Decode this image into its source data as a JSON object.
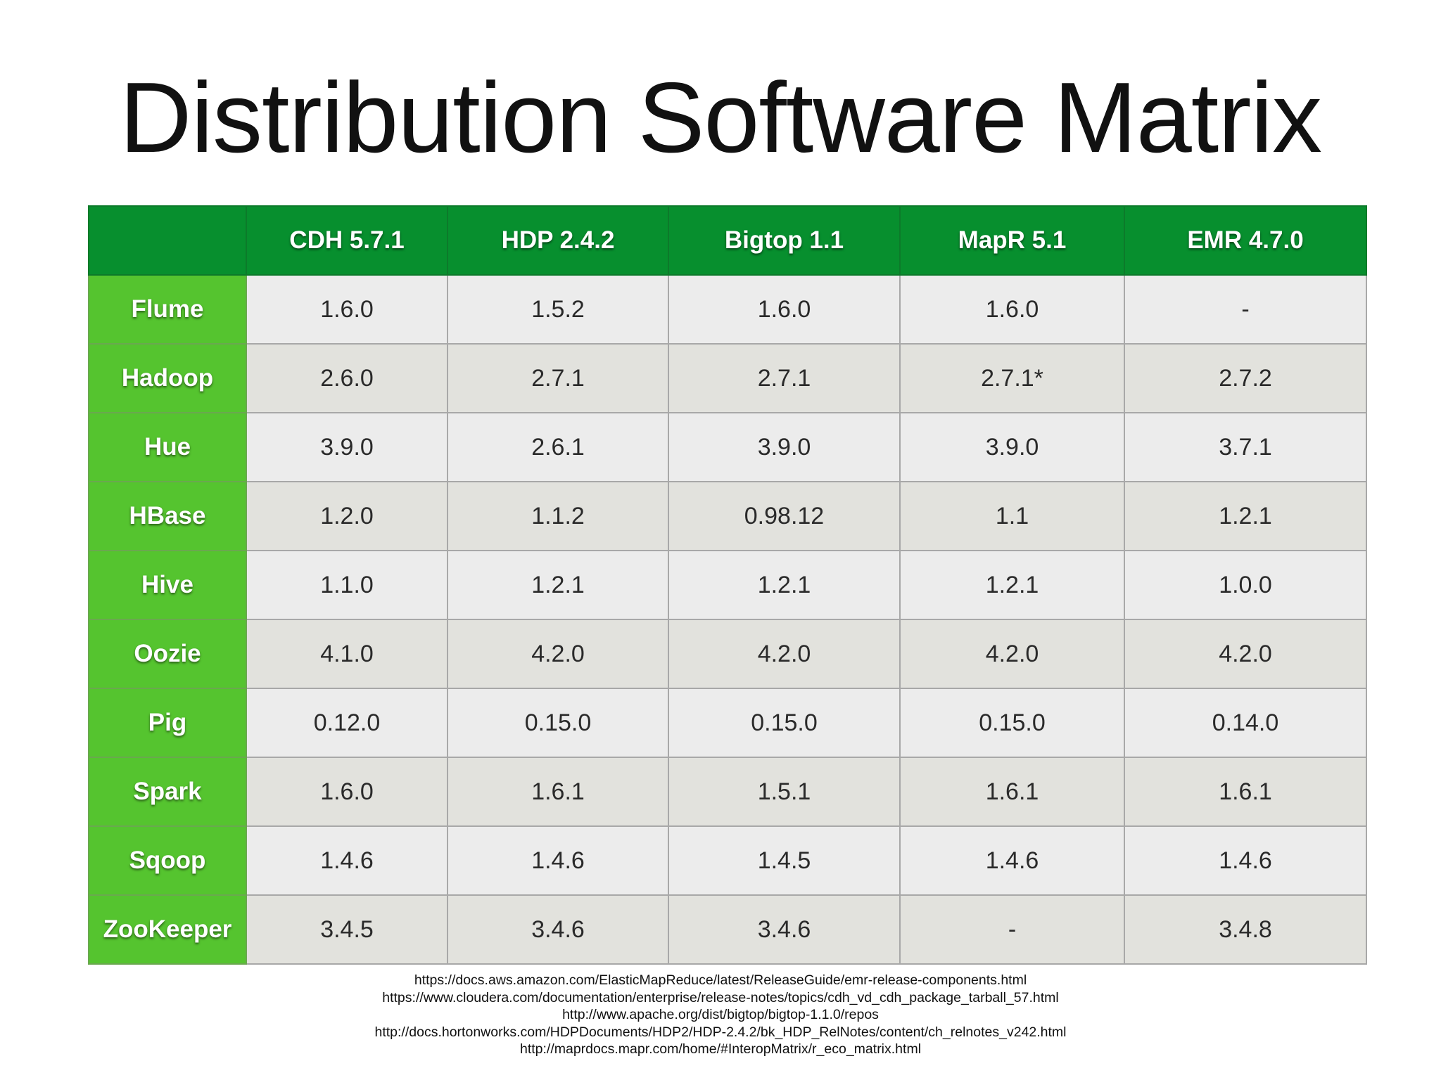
{
  "slide": {
    "title": "Distribution Software Matrix"
  },
  "table": {
    "corner": "",
    "columns": [
      "CDH 5.7.1",
      "HDP 2.4.2",
      "Bigtop 1.1",
      "MapR 5.1",
      "EMR 4.7.0"
    ],
    "rows": [
      {
        "name": "Flume",
        "values": [
          "1.6.0",
          "1.5.2",
          "1.6.0",
          "1.6.0",
          "-"
        ]
      },
      {
        "name": "Hadoop",
        "values": [
          "2.6.0",
          "2.7.1",
          "2.7.1",
          "2.7.1*",
          "2.7.2"
        ]
      },
      {
        "name": "Hue",
        "values": [
          "3.9.0",
          "2.6.1",
          "3.9.0",
          "3.9.0",
          "3.7.1"
        ]
      },
      {
        "name": "HBase",
        "values": [
          "1.2.0",
          "1.1.2",
          "0.98.12",
          "1.1",
          "1.2.1"
        ]
      },
      {
        "name": "Hive",
        "values": [
          "1.1.0",
          "1.2.1",
          "1.2.1",
          "1.2.1",
          "1.0.0"
        ]
      },
      {
        "name": "Oozie",
        "values": [
          "4.1.0",
          "4.2.0",
          "4.2.0",
          "4.2.0",
          "4.2.0"
        ]
      },
      {
        "name": "Pig",
        "values": [
          "0.12.0",
          "0.15.0",
          "0.15.0",
          "0.15.0",
          "0.14.0"
        ]
      },
      {
        "name": "Spark",
        "values": [
          "1.6.0",
          "1.6.1",
          "1.5.1",
          "1.6.1",
          "1.6.1"
        ]
      },
      {
        "name": "Sqoop",
        "values": [
          "1.4.6",
          "1.4.6",
          "1.4.5",
          "1.4.6",
          "1.4.6"
        ]
      },
      {
        "name": "ZooKeeper",
        "values": [
          "3.4.5",
          "3.4.6",
          "3.4.6",
          "-",
          "3.4.8"
        ]
      }
    ]
  },
  "references": [
    "https://docs.aws.amazon.com/ElasticMapReduce/latest/ReleaseGuide/emr-release-components.html",
    "https://www.cloudera.com/documentation/enterprise/release-notes/topics/cdh_vd_cdh_package_tarball_57.html",
    "http://www.apache.org/dist/bigtop/bigtop-1.1.0/repos",
    "http://docs.hortonworks.com/HDPDocuments/HDP2/HDP-2.4.2/bk_HDP_RelNotes/content/ch_relnotes_v242.html",
    "http://maprdocs.mapr.com/home/#InteropMatrix/r_eco_matrix.html"
  ],
  "colors": {
    "header_green": "#078f2e",
    "row_label_green": "#55c42f",
    "cell_light": "#ececec",
    "cell_alt": "#e2e2dd"
  }
}
